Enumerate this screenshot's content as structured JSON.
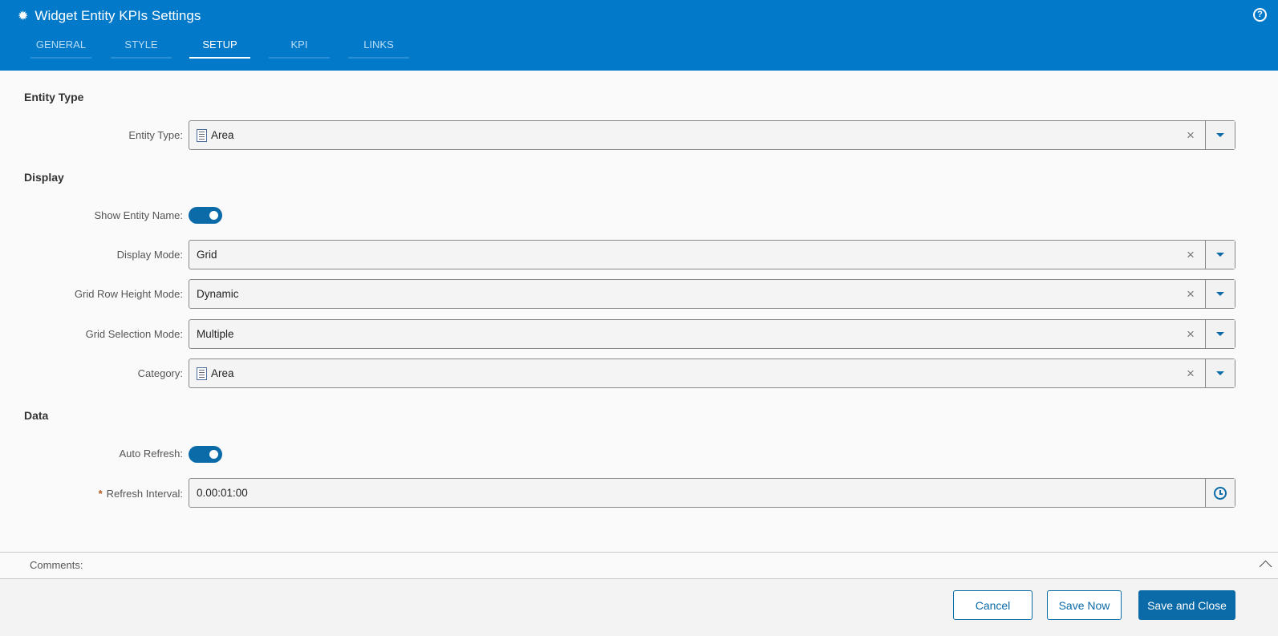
{
  "header": {
    "title": "Widget Entity KPIs Settings",
    "tabs": [
      {
        "label": "GENERAL"
      },
      {
        "label": "STYLE"
      },
      {
        "label": "SETUP",
        "active": true
      },
      {
        "label": "KPI"
      },
      {
        "label": "LINKS"
      }
    ],
    "help": "?"
  },
  "sections": {
    "entity_type": "Entity Type",
    "display": "Display",
    "data": "Data"
  },
  "fields": {
    "entity_type": {
      "label": "Entity Type:",
      "value": "Area"
    },
    "show_entity_name": {
      "label": "Show Entity Name:",
      "on": true
    },
    "display_mode": {
      "label": "Display Mode:",
      "value": "Grid"
    },
    "grid_row_height_mode": {
      "label": "Grid Row Height Mode:",
      "value": "Dynamic"
    },
    "grid_selection_mode": {
      "label": "Grid Selection Mode:",
      "value": "Multiple"
    },
    "category": {
      "label": "Category:",
      "value": "Area"
    },
    "auto_refresh": {
      "label": "Auto Refresh:",
      "on": true
    },
    "refresh_interval": {
      "label": "Refresh Interval:",
      "required": "*",
      "value": "0.00:01:00"
    }
  },
  "clear_glyph": "×",
  "comments": {
    "label": "Comments:"
  },
  "footer": {
    "cancel": "Cancel",
    "save_now": "Save Now",
    "save_close": "Save and Close"
  },
  "colors": {
    "header": "#0279c9",
    "accent": "#0b6aa8"
  }
}
